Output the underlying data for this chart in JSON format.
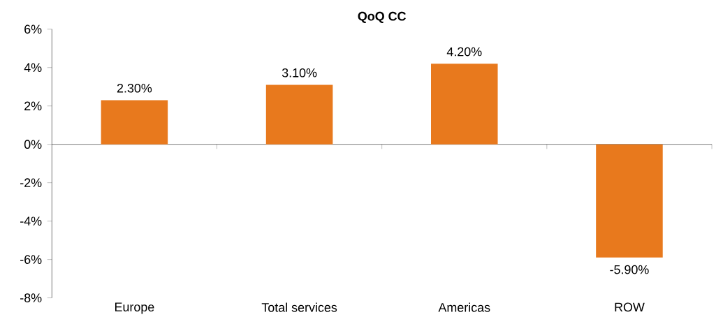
{
  "chart_data": {
    "type": "bar",
    "title": "QoQ CC",
    "categories": [
      "Europe",
      "Total services",
      "Americas",
      "ROW"
    ],
    "values": [
      2.3,
      3.1,
      4.2,
      -5.9
    ],
    "value_labels": [
      "2.30%",
      "3.10%",
      "4.20%",
      "-5.90%"
    ],
    "color": "#e8791d",
    "ylim": [
      -8,
      6
    ],
    "yticks": [
      {
        "value": -8,
        "label": "-8%"
      },
      {
        "value": -6,
        "label": "-6%"
      },
      {
        "value": -4,
        "label": "-4%"
      },
      {
        "value": -2,
        "label": "-2%"
      },
      {
        "value": 0,
        "label": "0%"
      },
      {
        "value": 2,
        "label": "2%"
      },
      {
        "value": 4,
        "label": "4%"
      },
      {
        "value": 6,
        "label": "6%"
      }
    ]
  }
}
